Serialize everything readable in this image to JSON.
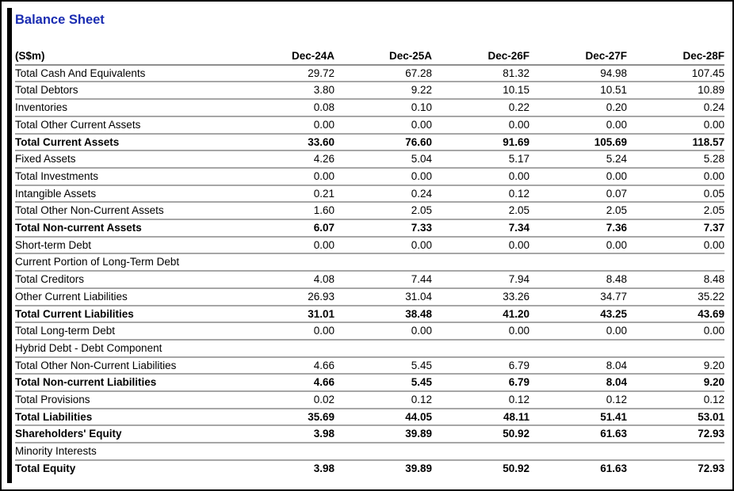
{
  "title": "Balance Sheet",
  "colors": {
    "title_blue": "#1a2cb1",
    "row_line": "#a6a6a6",
    "header_line": "#8e8e8e",
    "frame_black": "#000000"
  },
  "table": {
    "unit_label": "(S$m)",
    "columns": [
      "Dec-24A",
      "Dec-25A",
      "Dec-26F",
      "Dec-27F",
      "Dec-28F"
    ],
    "rows": [
      {
        "label": "Total Cash And Equivalents",
        "bold": false,
        "values": [
          "29.72",
          "67.28",
          "81.32",
          "94.98",
          "107.45"
        ]
      },
      {
        "label": "Total Debtors",
        "bold": false,
        "values": [
          "3.80",
          "9.22",
          "10.15",
          "10.51",
          "10.89"
        ]
      },
      {
        "label": "Inventories",
        "bold": false,
        "values": [
          "0.08",
          "0.10",
          "0.22",
          "0.20",
          "0.24"
        ]
      },
      {
        "label": "Total Other Current Assets",
        "bold": false,
        "values": [
          "0.00",
          "0.00",
          "0.00",
          "0.00",
          "0.00"
        ]
      },
      {
        "label": "Total Current Assets",
        "bold": true,
        "values": [
          "33.60",
          "76.60",
          "91.69",
          "105.69",
          "118.57"
        ]
      },
      {
        "label": "Fixed Assets",
        "bold": false,
        "values": [
          "4.26",
          "5.04",
          "5.17",
          "5.24",
          "5.28"
        ]
      },
      {
        "label": "Total Investments",
        "bold": false,
        "values": [
          "0.00",
          "0.00",
          "0.00",
          "0.00",
          "0.00"
        ]
      },
      {
        "label": "Intangible Assets",
        "bold": false,
        "values": [
          "0.21",
          "0.24",
          "0.12",
          "0.07",
          "0.05"
        ]
      },
      {
        "label": "Total Other Non-Current Assets",
        "bold": false,
        "values": [
          "1.60",
          "2.05",
          "2.05",
          "2.05",
          "2.05"
        ]
      },
      {
        "label": "Total Non-current Assets",
        "bold": true,
        "values": [
          "6.07",
          "7.33",
          "7.34",
          "7.36",
          "7.37"
        ]
      },
      {
        "label": "Short-term Debt",
        "bold": false,
        "values": [
          "0.00",
          "0.00",
          "0.00",
          "0.00",
          "0.00"
        ]
      },
      {
        "label": "Current Portion of Long-Term Debt",
        "bold": false,
        "values": [
          "",
          "",
          "",
          "",
          ""
        ]
      },
      {
        "label": "Total Creditors",
        "bold": false,
        "values": [
          "4.08",
          "7.44",
          "7.94",
          "8.48",
          "8.48"
        ]
      },
      {
        "label": "Other Current Liabilities",
        "bold": false,
        "values": [
          "26.93",
          "31.04",
          "33.26",
          "34.77",
          "35.22"
        ]
      },
      {
        "label": "Total Current Liabilities",
        "bold": true,
        "values": [
          "31.01",
          "38.48",
          "41.20",
          "43.25",
          "43.69"
        ]
      },
      {
        "label": "Total Long-term Debt",
        "bold": false,
        "values": [
          "0.00",
          "0.00",
          "0.00",
          "0.00",
          "0.00"
        ]
      },
      {
        "label": "Hybrid Debt - Debt Component",
        "bold": false,
        "values": [
          "",
          "",
          "",
          "",
          ""
        ]
      },
      {
        "label": "Total Other Non-Current Liabilities",
        "bold": false,
        "values": [
          "4.66",
          "5.45",
          "6.79",
          "8.04",
          "9.20"
        ]
      },
      {
        "label": "Total Non-current Liabilities",
        "bold": true,
        "values": [
          "4.66",
          "5.45",
          "6.79",
          "8.04",
          "9.20"
        ]
      },
      {
        "label": "Total Provisions",
        "bold": false,
        "values": [
          "0.02",
          "0.12",
          "0.12",
          "0.12",
          "0.12"
        ]
      },
      {
        "label": "Total Liabilities",
        "bold": true,
        "values": [
          "35.69",
          "44.05",
          "48.11",
          "51.41",
          "53.01"
        ]
      },
      {
        "label": "Shareholders' Equity",
        "bold": true,
        "values": [
          "3.98",
          "39.89",
          "50.92",
          "61.63",
          "72.93"
        ]
      },
      {
        "label": "Minority Interests",
        "bold": false,
        "values": [
          "",
          "",
          "",
          "",
          ""
        ]
      },
      {
        "label": "Total Equity",
        "bold": true,
        "values": [
          "3.98",
          "39.89",
          "50.92",
          "61.63",
          "72.93"
        ]
      }
    ]
  }
}
